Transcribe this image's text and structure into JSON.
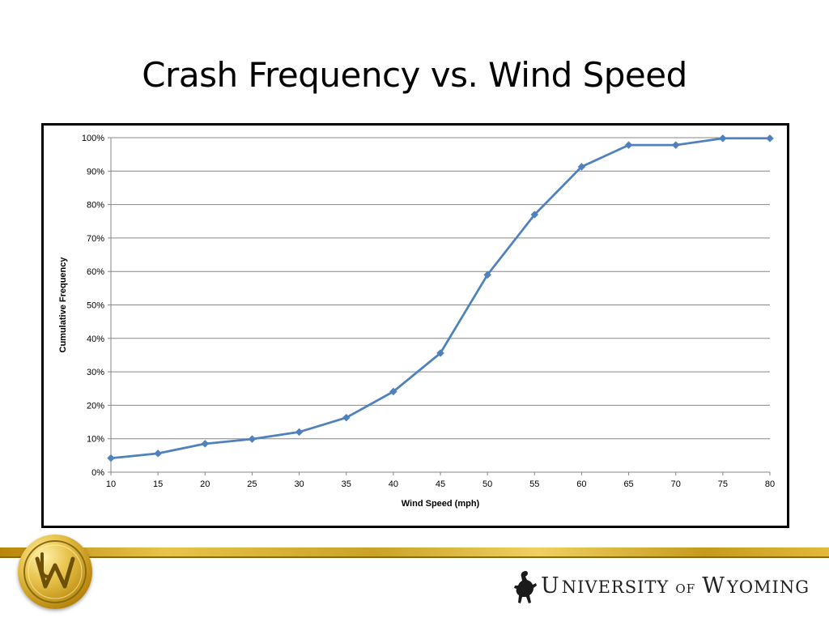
{
  "slide": {
    "title": "Crash Frequency vs. Wind Speed"
  },
  "footer": {
    "logo_text_1": "U",
    "logo_text_2": "NIVERSITY",
    "logo_text_3": "OF",
    "logo_text_4": "W",
    "logo_text_5": "YOMING",
    "band_color": "#c9a227"
  },
  "chart_data": {
    "type": "line",
    "title": "",
    "xlabel": "Wind Speed (mph)",
    "ylabel": "Cumulative Frequency",
    "x": [
      10,
      15,
      20,
      25,
      30,
      35,
      40,
      45,
      50,
      55,
      60,
      65,
      70,
      75,
      80
    ],
    "series": [
      {
        "values": [
          0.042,
          0.056,
          0.085,
          0.099,
          0.12,
          0.163,
          0.241,
          0.356,
          0.59,
          0.77,
          0.913,
          0.978,
          0.978,
          0.998,
          0.998
        ],
        "color": "#4f81bd"
      }
    ],
    "xlim": [
      10,
      80
    ],
    "ylim": [
      0,
      1
    ],
    "yticks": [
      "0%",
      "10%",
      "20%",
      "30%",
      "40%",
      "50%",
      "60%",
      "70%",
      "80%",
      "90%",
      "100%"
    ],
    "xticks": [
      "10",
      "15",
      "20",
      "25",
      "30",
      "35",
      "40",
      "45",
      "50",
      "55",
      "60",
      "65",
      "70",
      "75",
      "80"
    ],
    "grid": true,
    "legend": "none"
  }
}
